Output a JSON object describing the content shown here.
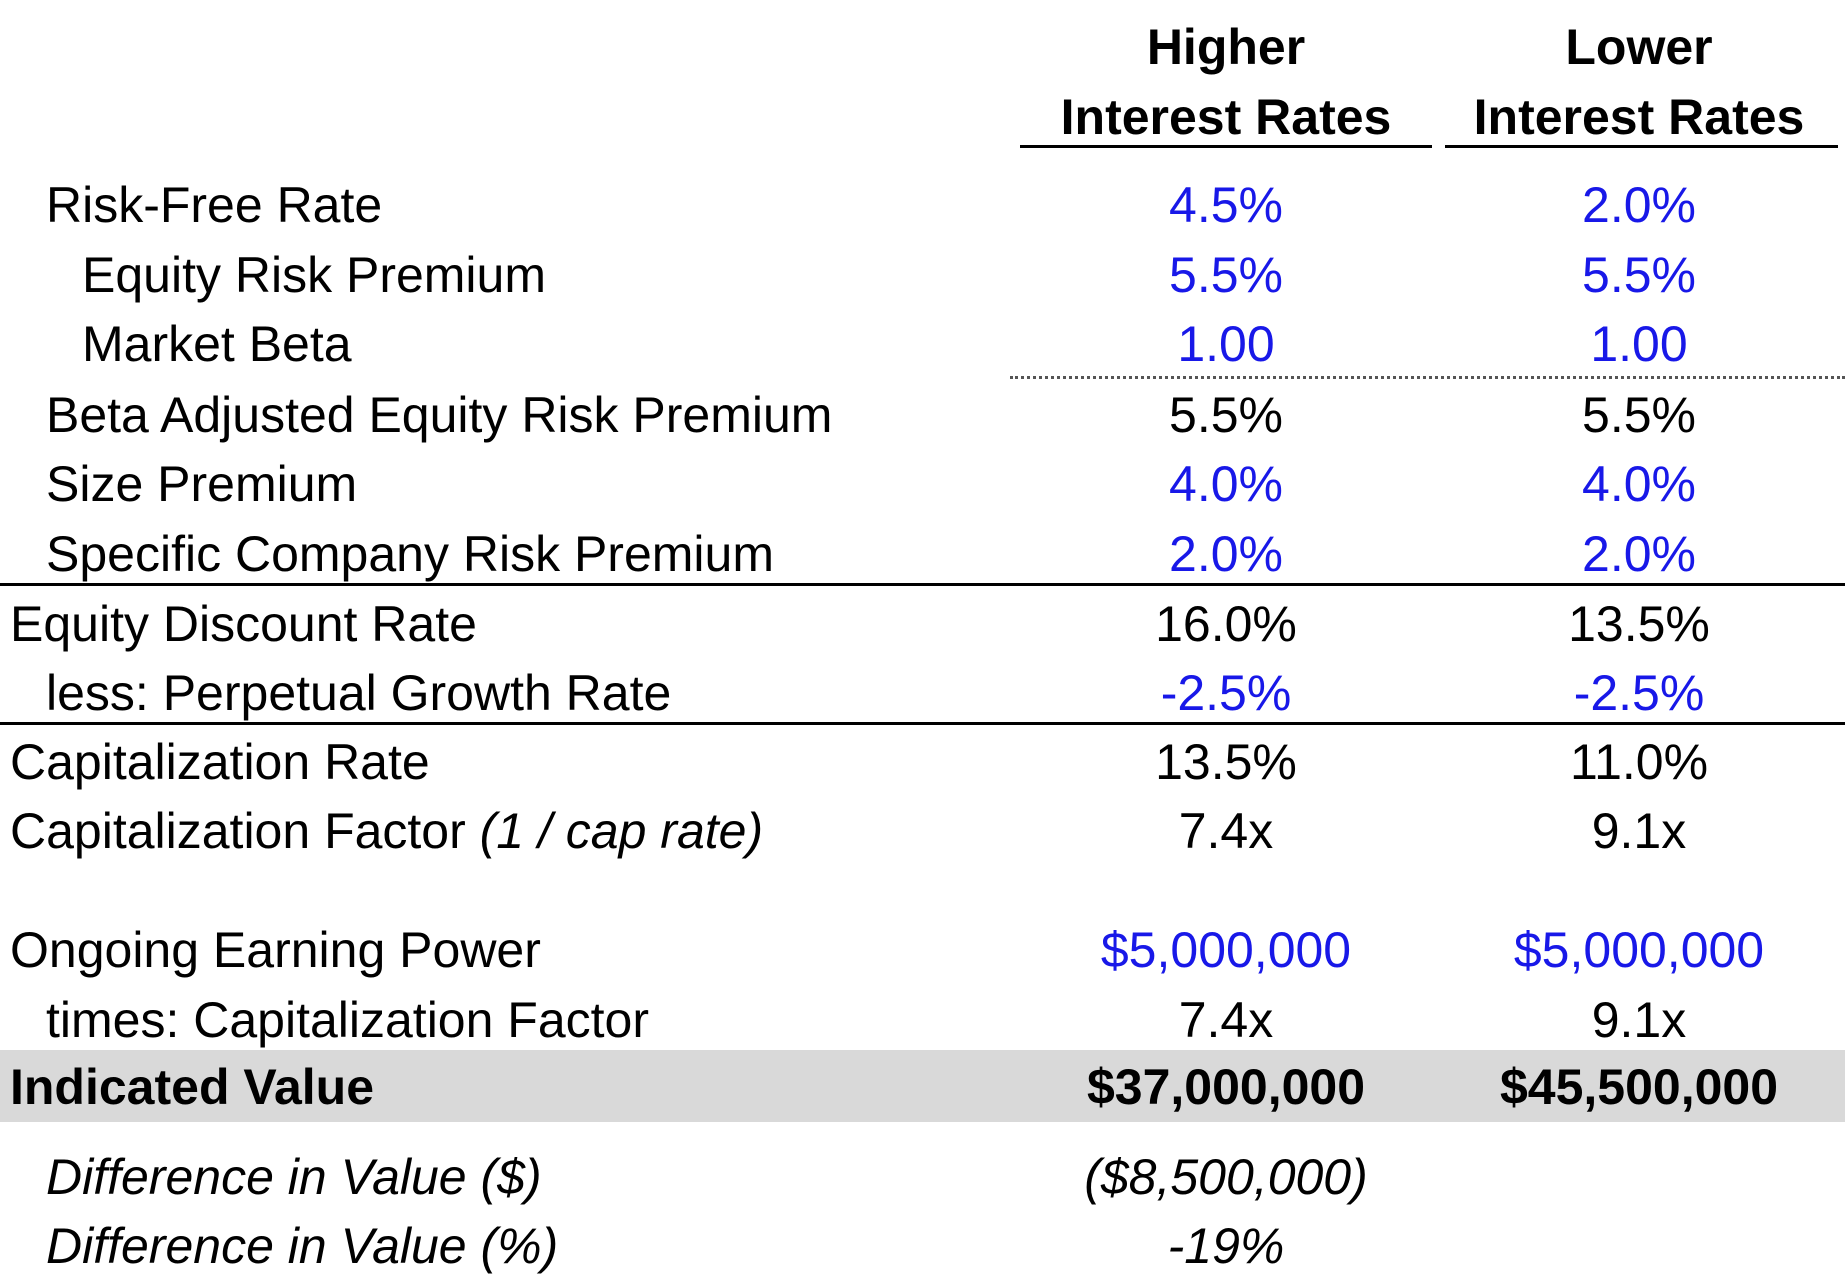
{
  "header": {
    "col1_line1": "Higher",
    "col1_line2": "Interest Rates",
    "col2_line1": "Lower",
    "col2_line2": "Interest Rates"
  },
  "rows": {
    "risk_free": {
      "label": "Risk-Free Rate",
      "higher": "4.5%",
      "lower": "2.0%"
    },
    "erp": {
      "label": "Equity Risk Premium",
      "higher": "5.5%",
      "lower": "5.5%"
    },
    "beta": {
      "label": "Market Beta",
      "higher": "1.00",
      "lower": "1.00"
    },
    "beta_adj_erp": {
      "label": "Beta Adjusted Equity Risk Premium",
      "higher": "5.5%",
      "lower": "5.5%"
    },
    "size_premium": {
      "label": "Size Premium",
      "higher": "4.0%",
      "lower": "4.0%"
    },
    "specific": {
      "label": "Specific Company Risk Premium",
      "higher": "2.0%",
      "lower": "2.0%"
    },
    "equity_discount": {
      "label": "Equity Discount Rate",
      "higher": "16.0%",
      "lower": "13.5%"
    },
    "growth": {
      "label": "less: Perpetual Growth Rate",
      "higher": "-2.5%",
      "lower": "-2.5%"
    },
    "cap_rate": {
      "label": "Capitalization Rate",
      "higher": "13.5%",
      "lower": "11.0%"
    },
    "cap_factor": {
      "label": "Capitalization Factor ",
      "label_note": "(1 / cap rate)",
      "higher": "7.4x",
      "lower": "9.1x"
    },
    "earning_power": {
      "label": "Ongoing Earning Power",
      "higher": "$5,000,000",
      "lower": "$5,000,000"
    },
    "times_factor": {
      "label": "times: Capitalization Factor",
      "higher": "7.4x",
      "lower": "9.1x"
    },
    "indicated_value": {
      "label": "Indicated Value",
      "higher": "$37,000,000",
      "lower": "$45,500,000"
    },
    "diff_dollar": {
      "label": "Difference in Value ($)",
      "higher": "($8,500,000)"
    },
    "diff_pct": {
      "label": "Difference in Value (%)",
      "higher": "-19%"
    }
  },
  "colors": {
    "input_text": "#1818e8",
    "highlight_band": "#d9d9d9"
  }
}
